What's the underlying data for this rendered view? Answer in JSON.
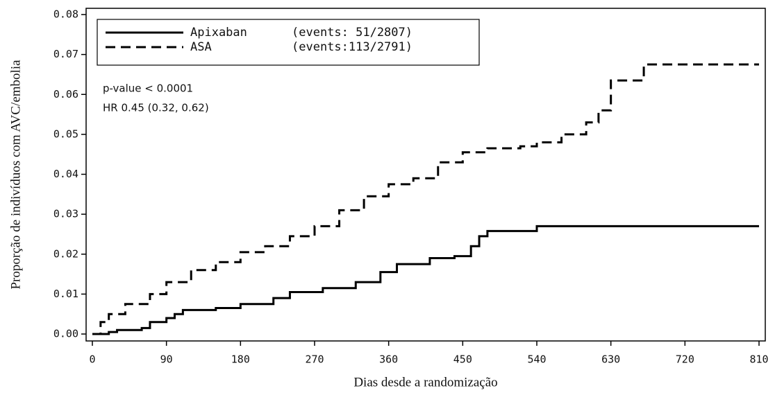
{
  "chart_data": {
    "type": "line",
    "step": "post",
    "xlabel": "Dias desde a randomização",
    "ylabel": "Proporção de indivíduos com AVC/embolia",
    "annotations": [
      "p-value < 0.0001",
      "HR 0.45 (0.32, 0.62)"
    ],
    "xlim": [
      0,
      810
    ],
    "xticks": [
      0,
      90,
      180,
      270,
      360,
      450,
      540,
      630,
      720,
      810
    ],
    "ylim": [
      0,
      0.08
    ],
    "yticks": [
      {
        "value": 0,
        "label": "0.00"
      },
      0.01,
      0.02,
      0.03,
      0.04,
      0.05,
      0.06,
      0.07,
      0.08
    ],
    "series": [
      {
        "name": "Apixaban",
        "events": "(events: 51/2807)",
        "color": "#000000",
        "line_style": "solid",
        "x": [
          0,
          20,
          30,
          60,
          70,
          90,
          100,
          110,
          150,
          180,
          220,
          240,
          280,
          320,
          350,
          370,
          410,
          440,
          460,
          470,
          480,
          540,
          810
        ],
        "values": [
          0,
          0.0005,
          0.001,
          0.0015,
          0.003,
          0.004,
          0.005,
          0.006,
          0.0065,
          0.0075,
          0.009,
          0.0105,
          0.0115,
          0.013,
          0.0155,
          0.0175,
          0.019,
          0.0195,
          0.022,
          0.0245,
          0.0258,
          0.027,
          0.027
        ]
      },
      {
        "name": "ASA",
        "events": "(events:113/2791)",
        "color": "#000000",
        "line_style": "dashed",
        "x": [
          0,
          10,
          20,
          40,
          70,
          90,
          120,
          150,
          180,
          210,
          240,
          270,
          300,
          330,
          360,
          390,
          420,
          450,
          480,
          520,
          540,
          570,
          600,
          615,
          630,
          660,
          670,
          810
        ],
        "values": [
          0,
          0.003,
          0.005,
          0.0075,
          0.01,
          0.013,
          0.016,
          0.018,
          0.0205,
          0.022,
          0.0245,
          0.027,
          0.031,
          0.0345,
          0.0375,
          0.039,
          0.043,
          0.0455,
          0.0465,
          0.047,
          0.048,
          0.05,
          0.053,
          0.056,
          0.0635,
          0.0635,
          0.0675,
          0.0675
        ]
      }
    ]
  }
}
